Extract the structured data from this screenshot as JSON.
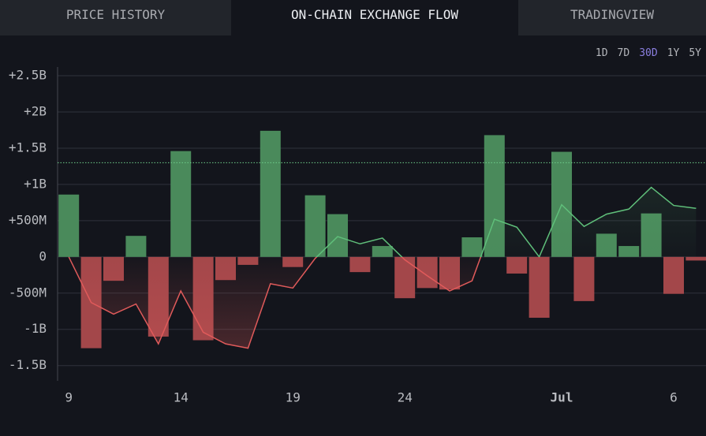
{
  "tabs": [
    "PRICE HISTORY",
    "ON-CHAIN EXCHANGE FLOW",
    "TRADINGVIEW"
  ],
  "active_tab": 1,
  "ranges": [
    "1D",
    "7D",
    "30D",
    "1Y",
    "5Y"
  ],
  "active_range": 2,
  "chart_data": {
    "type": "bar",
    "categories": [
      "9",
      null,
      null,
      null,
      null,
      "14",
      null,
      null,
      null,
      null,
      "19",
      null,
      null,
      null,
      null,
      "24",
      null,
      null,
      null,
      null,
      null,
      null,
      "Jul",
      null,
      null,
      null,
      null,
      "6",
      null
    ],
    "series": [
      {
        "values": [
          0.86,
          -1.26,
          -0.33,
          0.29,
          -1.1,
          1.46,
          -1.15,
          -0.32,
          -0.11,
          1.74,
          -0.14,
          0.85,
          0.59,
          -0.21,
          0.15,
          -0.57,
          -0.43,
          -0.45,
          0.27,
          1.68,
          -0.23,
          -0.84,
          1.45,
          -0.61,
          0.32,
          0.15,
          0.6,
          -0.51,
          -0.05
        ],
        "color_positive": "#4a8a5b",
        "color_negative": "#a3474a"
      }
    ],
    "line": {
      "values": [
        0,
        -0.63,
        -0.79,
        -0.65,
        -1.2,
        -0.47,
        -1.04,
        -1.2,
        -1.26,
        -0.37,
        -0.43,
        -0.02,
        0.28,
        0.18,
        0.26,
        -0.04,
        -0.26,
        -0.47,
        -0.33,
        0.52,
        0.41,
        0,
        0.72,
        0.42,
        0.59,
        0.66,
        0.96,
        0.71,
        0.67
      ],
      "color_positive": "#5fbf7a",
      "color_negative": "#e05a5a"
    },
    "reference_line": {
      "value": 1.3,
      "color": "#6fcf8a"
    },
    "ylim": [
      -1.71,
      2.62
    ],
    "yticks": [
      {
        "value": 2.5,
        "label": "+2.5B"
      },
      {
        "value": 2,
        "label": "+2B"
      },
      {
        "value": 1.5,
        "label": "+1.5B"
      },
      {
        "value": 1,
        "label": "+1B"
      },
      {
        "value": 0.5,
        "label": "+500M"
      },
      0,
      {
        "value": -0.5,
        "label": "-500M"
      },
      {
        "value": -1,
        "label": "-1B"
      },
      {
        "value": -1.5,
        "label": "-1.5B"
      }
    ],
    "grid": true
  }
}
